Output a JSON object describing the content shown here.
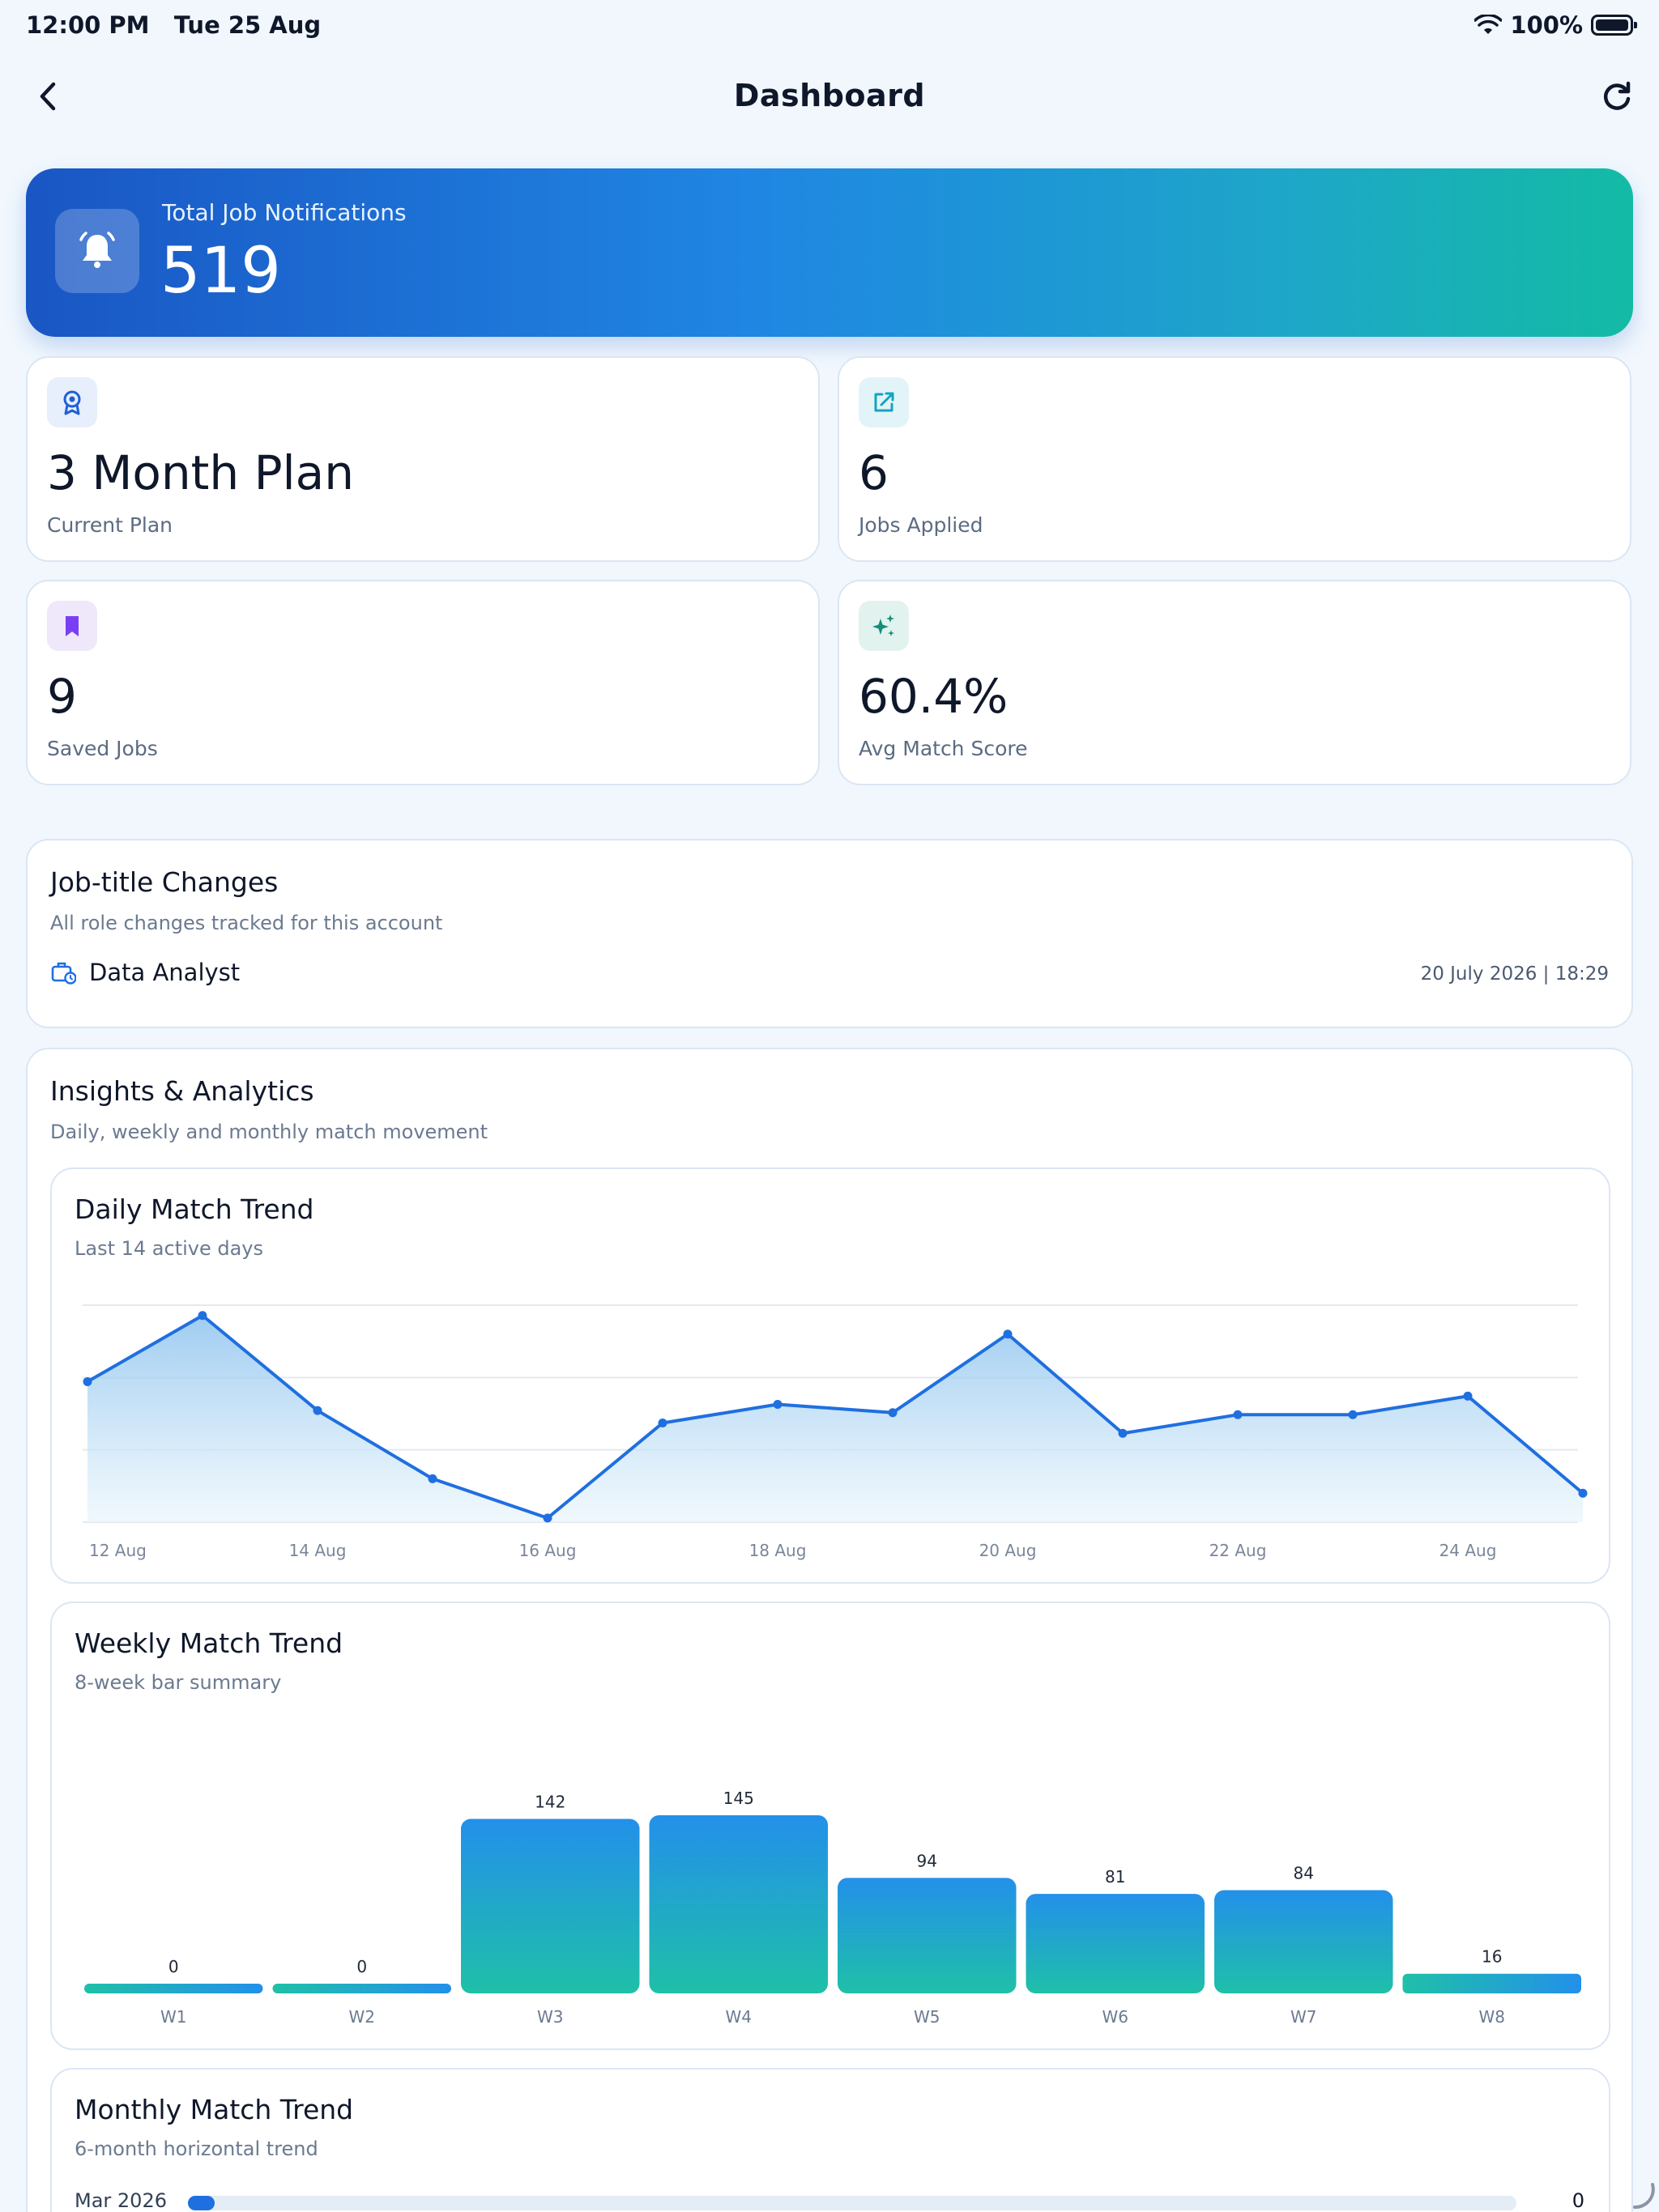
{
  "status_bar": {
    "time": "12:00 PM",
    "date": "Tue 25 Aug",
    "battery": "100%"
  },
  "nav": {
    "title": "Dashboard"
  },
  "hero": {
    "label": "Total Job Notifications",
    "value": "519",
    "icon": "bell-icon"
  },
  "stats": [
    {
      "value": "3 Month Plan",
      "label": "Current Plan",
      "icon": "award-icon",
      "icon_color": "#1f5fd6",
      "icon_bg": "#e7effc"
    },
    {
      "value": "6",
      "label": "Jobs Applied",
      "icon": "external-link-icon",
      "icon_color": "#11a5c2",
      "icon_bg": "#e3f4f8"
    },
    {
      "value": "9",
      "label": "Saved Jobs",
      "icon": "bookmark-icon",
      "icon_color": "#7a3ff2",
      "icon_bg": "#efe8fb"
    },
    {
      "value": "60.4%",
      "label": "Avg Match Score",
      "icon": "sparkles-icon",
      "icon_color": "#138e7a",
      "icon_bg": "#e2f3ef"
    }
  ],
  "job_title_changes": {
    "title": "Job-title Changes",
    "subtitle": "All role changes tracked for this account",
    "entries": [
      {
        "role": "Data Analyst",
        "timestamp": "20 July 2026 | 18:29"
      }
    ]
  },
  "insights": {
    "title": "Insights & Analytics",
    "subtitle": "Daily, weekly and monthly match movement",
    "daily": {
      "title": "Daily Match Trend",
      "subtitle": "Last 14 active days"
    },
    "weekly": {
      "title": "Weekly Match Trend",
      "subtitle": "8-week bar summary"
    },
    "monthly": {
      "title": "Monthly Match Trend",
      "subtitle": "6-month horizontal trend",
      "rows": [
        {
          "label": "Mar 2026",
          "value": "0",
          "fraction": 0.02
        }
      ]
    }
  },
  "chart_data": [
    {
      "type": "area",
      "title": "Daily Match Trend",
      "subtitle": "Last 14 active days",
      "x": [
        "12 Aug",
        "13 Aug",
        "14 Aug",
        "15 Aug",
        "16 Aug",
        "17 Aug",
        "18 Aug",
        "19 Aug",
        "20 Aug",
        "21 Aug",
        "22 Aug",
        "23 Aug",
        "24 Aug",
        "25 Aug"
      ],
      "x_tick_labels": [
        "12 Aug",
        "14 Aug",
        "16 Aug",
        "18 Aug",
        "20 Aug",
        "22 Aug",
        "24 Aug"
      ],
      "values": [
        68,
        100,
        54,
        21,
        2,
        48,
        57,
        53,
        91,
        43,
        52,
        52,
        61,
        14
      ],
      "ylim": [
        0,
        105
      ],
      "grid": true,
      "color": "#1f6fe0"
    },
    {
      "type": "bar",
      "title": "Weekly Match Trend",
      "subtitle": "8-week bar summary",
      "categories": [
        "W1",
        "W2",
        "W3",
        "W4",
        "W5",
        "W6",
        "W7",
        "W8"
      ],
      "values": [
        0,
        0,
        142,
        145,
        94,
        81,
        84,
        16
      ],
      "ylim": [
        0,
        145
      ],
      "color_top": "#2390ea",
      "color_bottom": "#1fc0a8"
    },
    {
      "type": "bar",
      "title": "Monthly Match Trend",
      "subtitle": "6-month horizontal trend",
      "categories": [
        "Mar 2026"
      ],
      "values": [
        0
      ]
    }
  ]
}
